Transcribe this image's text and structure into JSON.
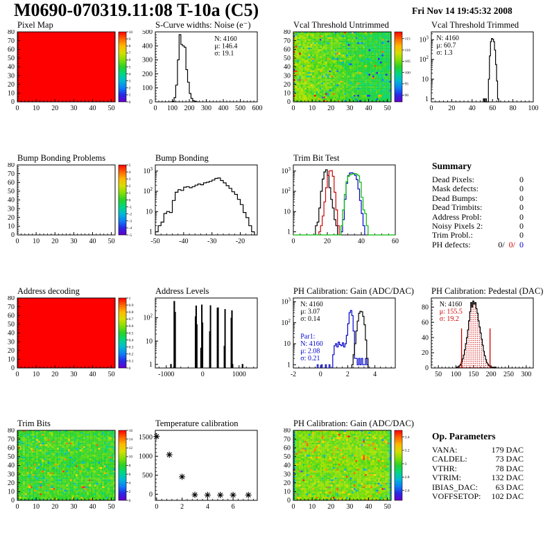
{
  "header": {
    "title": "M0690-070319.11:08 T-10a (C5)",
    "date": "Fri Nov 14 19:45:32 2008"
  },
  "colors": {
    "red": "#cc0000",
    "blue": "#0000cc",
    "green": "#00bb00",
    "black": "#000000"
  },
  "chart_data": [
    {
      "id": "pixel_map",
      "type": "heatmap",
      "title": "Pixel Map",
      "xlim": [
        0,
        52
      ],
      "ylim": [
        0,
        80
      ],
      "xticks": [
        0,
        10,
        20,
        30,
        40,
        50
      ],
      "yticks": [
        0,
        10,
        20,
        30,
        40,
        50,
        60,
        70,
        80
      ],
      "zlim": [
        0,
        10
      ],
      "fill": "solid",
      "value": 10,
      "colorbar": true,
      "cticks": [
        0,
        1,
        2,
        3,
        4,
        5,
        6,
        7,
        8,
        9,
        10
      ]
    },
    {
      "id": "scurve_noise",
      "type": "histogram",
      "title": "S-Curve widths: Noise (e⁻)",
      "xlim": [
        0,
        600
      ],
      "xticks": [
        0,
        100,
        200,
        300,
        400,
        500,
        600
      ],
      "yscale": "linear",
      "ylim": [
        0,
        500
      ],
      "yticks": [
        0,
        100,
        200,
        300,
        400,
        500
      ],
      "series": [
        {
          "color": "#000000",
          "start": 90,
          "width": 10,
          "counts": [
            1,
            5,
            30,
            120,
            300,
            480,
            410,
            400,
            390,
            230,
            140,
            60,
            25,
            8,
            3,
            1
          ]
        }
      ],
      "stats": [
        {
          "x": 0.58,
          "y": 0.05,
          "lines": [
            {
              "t": "N: 4160",
              "c": "#000000"
            },
            {
              "t": "μ: 146.4",
              "c": "#000000"
            },
            {
              "t": "σ: 19.1",
              "c": "#000000"
            }
          ]
        }
      ]
    },
    {
      "id": "vcal_untrimmed",
      "type": "heatmap",
      "title": "Vcal Threshold Untrimmed",
      "xlim": [
        0,
        52
      ],
      "ylim": [
        0,
        80
      ],
      "xticks": [
        0,
        10,
        20,
        30,
        40,
        50
      ],
      "yticks": [
        0,
        10,
        20,
        30,
        40,
        50,
        60,
        70,
        80
      ],
      "zlim": [
        87,
        118
      ],
      "fill": "noise",
      "mean": 103.5,
      "spread": 3.2,
      "gx": -5,
      "hi_rate": 0.025,
      "hi_boost": 9,
      "lo_rate": 0.05,
      "lo_boost": -8,
      "seed": 12345,
      "colorbar": true,
      "cticks": [
        90,
        95,
        100,
        105,
        110,
        115
      ]
    },
    {
      "id": "vcal_trimmed",
      "type": "histogram",
      "title": "Vcal Threshold Trimmed",
      "xlim": [
        0,
        100
      ],
      "xticks": [
        0,
        20,
        40,
        60,
        80,
        100
      ],
      "yscale": "log",
      "ylim": [
        0.7,
        2500
      ],
      "yticks": [
        {
          "v": 1,
          "b": "1"
        },
        {
          "v": 10,
          "b": "10"
        },
        {
          "v": 100,
          "b": "10",
          "e": "2"
        },
        {
          "v": 1000,
          "b": "10",
          "e": "3"
        }
      ],
      "series": [
        {
          "color": "#000000",
          "start": 51,
          "width": 1,
          "counts": [
            1,
            0,
            1,
            0,
            0,
            10,
            150,
            800,
            1150,
            1050,
            800,
            300,
            55,
            8,
            1
          ]
        }
      ],
      "stats": [
        {
          "x": 0.05,
          "y": 0.04,
          "lines": [
            {
              "t": "N: 4160",
              "c": "#000000"
            },
            {
              "t": "μ: 60.7",
              "c": "#000000"
            },
            {
              "t": "σ:  1.3",
              "c": "#000000"
            }
          ]
        }
      ]
    },
    {
      "id": "bump_problems",
      "type": "heatmap",
      "title": "Bump Bonding Problems",
      "xlim": [
        0,
        52
      ],
      "ylim": [
        0,
        80
      ],
      "xticks": [
        0,
        10,
        20,
        30,
        40,
        50
      ],
      "yticks": [
        0,
        10,
        20,
        30,
        40,
        50,
        60,
        70,
        80
      ],
      "zlim": [
        -5,
        5
      ],
      "fill": "none",
      "colorbar": true,
      "cticks": [
        -5,
        -4,
        -3,
        -2,
        -1,
        0,
        1,
        2,
        3,
        4,
        5
      ]
    },
    {
      "id": "bump_bonding",
      "type": "histogram",
      "title": "Bump Bonding",
      "xlim": [
        -50,
        -14
      ],
      "xticks": [
        -50,
        -40,
        -30,
        -20
      ],
      "yscale": "log",
      "ylim": [
        0.7,
        2000
      ],
      "yticks": [
        {
          "v": 1,
          "b": "1"
        },
        {
          "v": 10,
          "b": "10"
        },
        {
          "v": 100,
          "b": "10",
          "e": "2"
        },
        {
          "v": 1000,
          "b": "10",
          "e": "3"
        }
      ],
      "series": [
        {
          "color": "#000000",
          "start": -50,
          "width": 1,
          "counts": [
            1,
            2,
            3,
            8,
            10,
            9,
            35,
            90,
            120,
            110,
            160,
            170,
            150,
            170,
            200,
            230,
            210,
            260,
            280,
            310,
            360,
            430,
            450,
            340,
            260,
            190,
            140,
            95,
            70,
            40,
            22,
            9,
            5,
            2,
            1
          ]
        }
      ]
    },
    {
      "id": "trim_bit_test",
      "type": "histogram",
      "title": "Trim Bit Test",
      "xlim": [
        0,
        60
      ],
      "xticks": [
        0,
        20,
        40,
        60
      ],
      "yscale": "log",
      "ylim": [
        0.7,
        2000
      ],
      "yticks": [
        {
          "v": 1,
          "b": "1"
        },
        {
          "v": 10,
          "b": "10"
        },
        {
          "v": 100,
          "b": "10",
          "e": "2"
        },
        {
          "v": 1000,
          "b": "10",
          "e": "3"
        }
      ],
      "series": [
        {
          "color": "#000000",
          "start": 13,
          "width": 1,
          "counts": [
            2,
            3,
            15,
            100,
            400,
            900,
            1150,
            600,
            150,
            40,
            15,
            4,
            2
          ]
        },
        {
          "color": "#cc0000",
          "start": 15,
          "width": 1,
          "counts": [
            1,
            2,
            6,
            30,
            150,
            600,
            1000,
            1050,
            550,
            90,
            12,
            2
          ]
        },
        {
          "color": "#0000cc",
          "start": 28,
          "width": 1,
          "counts": [
            1,
            4,
            40,
            250,
            600,
            800,
            820,
            750,
            620,
            380,
            130,
            35,
            8,
            2
          ]
        },
        {
          "color": "#00bb00",
          "start": 28,
          "width": 1,
          "full_base": true,
          "counts": [
            2,
            12,
            70,
            300,
            550,
            660,
            700,
            730,
            740,
            700,
            580,
            280,
            50,
            12,
            8,
            2
          ]
        }
      ]
    },
    {
      "id": "address_decoding",
      "type": "heatmap",
      "title": "Address decoding",
      "xlim": [
        0,
        52
      ],
      "ylim": [
        0,
        80
      ],
      "xticks": [
        0,
        10,
        20,
        30,
        40,
        50
      ],
      "yticks": [
        0,
        10,
        20,
        30,
        40,
        50,
        60,
        70,
        80
      ],
      "zlim": [
        0,
        1
      ],
      "fill": "solid",
      "value": 1,
      "colorbar": true,
      "cticks": [
        0,
        0.1,
        0.2,
        0.3,
        0.4,
        0.5,
        0.6,
        0.7,
        0.8,
        0.9,
        1
      ]
    },
    {
      "id": "address_levels",
      "type": "histogram",
      "title": "Address Levels",
      "xlim": [
        -1300,
        1500
      ],
      "xticks": [
        -1000,
        0,
        1000
      ],
      "yscale": "log",
      "ylim": [
        0.7,
        700
      ],
      "yticks": [
        {
          "v": 1,
          "b": "1"
        },
        {
          "v": 10,
          "b": "10"
        },
        {
          "v": 100,
          "b": "10",
          "e": "2"
        }
      ],
      "bars": [
        [
          -880,
          20,
          1
        ],
        [
          -790,
          22,
          500
        ],
        [
          -768,
          22,
          170
        ],
        [
          -205,
          18,
          110
        ],
        [
          -187,
          18,
          320
        ],
        [
          -169,
          18,
          50
        ],
        [
          -55,
          18,
          5
        ],
        [
          -32,
          18,
          350
        ],
        [
          -14,
          18,
          60
        ],
        [
          188,
          18,
          25
        ],
        [
          206,
          18,
          330
        ],
        [
          398,
          18,
          260
        ],
        [
          416,
          18,
          265
        ],
        [
          588,
          18,
          6
        ],
        [
          606,
          18,
          225
        ],
        [
          778,
          18,
          95
        ],
        [
          796,
          18,
          200
        ],
        [
          814,
          18,
          1
        ],
        [
          1085,
          20,
          1
        ]
      ],
      "bars_color": "#000000"
    },
    {
      "id": "ph_gain_hist",
      "type": "histogram",
      "title": "PH Calibration: Gain (ADC/DAC)",
      "xlim": [
        -2,
        5.5
      ],
      "xticks": [
        -2,
        0,
        2,
        4
      ],
      "yscale": "log",
      "ylim": [
        0.7,
        1500
      ],
      "yticks": [
        {
          "v": 1,
          "b": "1"
        },
        {
          "v": 10,
          "b": "10"
        },
        {
          "v": 100,
          "b": "10",
          "e": "2"
        },
        {
          "v": 1000,
          "b": "10",
          "e": "3"
        }
      ],
      "bars": [
        [
          -0.25,
          0.08,
          1
        ],
        [
          0.05,
          0.08,
          1
        ],
        [
          0.35,
          0.08,
          1
        ],
        [
          0.62,
          0.08,
          1
        ]
      ],
      "bars_color": "#0000cc",
      "series": [
        {
          "color": "#0000cc",
          "start": 0.9,
          "width": 0.1,
          "counts": [
            3,
            8,
            10,
            7,
            12,
            9,
            8,
            11,
            7,
            10,
            25,
            90,
            300,
            380,
            220,
            40,
            2,
            2,
            1,
            2,
            1,
            2,
            1,
            1,
            2,
            1
          ]
        },
        {
          "color": "#000000",
          "start": 2.3,
          "width": 0.1,
          "counts": [
            1,
            3,
            10,
            40,
            120,
            280,
            350,
            330,
            200,
            80,
            15,
            2
          ]
        }
      ],
      "stats": [
        {
          "x": 0.07,
          "y": 0.04,
          "lines": [
            {
              "t": "N: 4160",
              "c": "#000000"
            },
            {
              "t": "μ: 3.07",
              "c": "#000000"
            },
            {
              "t": "σ: 0.14",
              "c": "#000000"
            }
          ]
        },
        {
          "x": 0.07,
          "y": 0.5,
          "lines": [
            {
              "t": "Par1:",
              "c": "#0000cc"
            },
            {
              "t": "N: 4160",
              "c": "#0000cc"
            },
            {
              "t": "μ: 2.08",
              "c": "#0000cc"
            },
            {
              "t": "σ: 0.21",
              "c": "#0000cc"
            }
          ]
        }
      ]
    },
    {
      "id": "ph_pedestal",
      "type": "histogram",
      "title": "PH Calibration: Pedestal (DAC)",
      "xlim": [
        30,
        320
      ],
      "xticks": [
        50,
        100,
        150,
        200,
        250,
        300
      ],
      "yscale": "linear",
      "ylim": [
        0,
        92
      ],
      "yticks": [
        0,
        20,
        40,
        60,
        80
      ],
      "series": [
        {
          "color": "#000000",
          "fill": "dots",
          "start": 100,
          "width": 3,
          "counts": [
            1,
            1,
            2,
            3,
            5,
            8,
            12,
            17,
            24,
            32,
            40,
            50,
            62,
            74,
            86,
            80,
            88,
            84,
            86,
            78,
            72,
            62,
            54,
            46,
            38,
            30,
            22,
            16,
            11,
            7,
            5,
            3,
            2,
            1,
            1,
            1,
            0,
            1
          ]
        }
      ],
      "vlines": [
        {
          "x": 116,
          "y": 52
        },
        {
          "x": 197,
          "y": 52
        }
      ],
      "stats": [
        {
          "x": 0.08,
          "y": 0.04,
          "lines": [
            {
              "t": "N: 4160",
              "c": "#000000"
            },
            {
              "t": "μ: 155.5",
              "c": "#cc0000"
            },
            {
              "t": "σ: 19.2",
              "c": "#cc0000"
            }
          ]
        }
      ]
    },
    {
      "id": "trim_bits_map",
      "type": "heatmap",
      "title": "Trim Bits",
      "xlim": [
        0,
        52
      ],
      "ylim": [
        0,
        80
      ],
      "xticks": [
        0,
        10,
        20,
        30,
        40,
        50
      ],
      "yticks": [
        0,
        10,
        20,
        30,
        40,
        50,
        60,
        70,
        80
      ],
      "zlim": [
        0,
        16
      ],
      "fill": "noise",
      "mean": 8.4,
      "spread": 1.5,
      "gx": 0,
      "hi_rate": 0.035,
      "hi_boost": 4.5,
      "lo_rate": 0.06,
      "lo_boost": -2.8,
      "seed": 777,
      "colorbar": true,
      "cticks": [
        0,
        2,
        4,
        6,
        8,
        10,
        12,
        14,
        16
      ]
    },
    {
      "id": "temp_calibration",
      "type": "scatter",
      "title": "Temperature calibration",
      "xlim": [
        -0.1,
        7.9
      ],
      "xticks": [
        0,
        2,
        4,
        6
      ],
      "yscale": "linear",
      "ylim": [
        -160,
        1680
      ],
      "yticks": [
        0,
        500,
        1000,
        1500
      ],
      "marker": "asterisk",
      "points": [
        [
          0,
          1520
        ],
        [
          1,
          1040
        ],
        [
          2,
          460
        ],
        [
          3,
          -15
        ],
        [
          4,
          -20
        ],
        [
          5,
          -20
        ],
        [
          6,
          -20
        ],
        [
          7.2,
          -20
        ]
      ]
    },
    {
      "id": "ph_gain_map",
      "type": "heatmap",
      "title": "PH Calibration: Gain (ADC/DAC)",
      "xlim": [
        0,
        52
      ],
      "ylim": [
        0,
        80
      ],
      "xticks": [
        0,
        10,
        20,
        30,
        40,
        50
      ],
      "yticks": [
        0,
        10,
        20,
        30,
        40,
        50,
        60,
        70,
        80
      ],
      "zlim": [
        2.45,
        3.5
      ],
      "fill": "noise",
      "mean": 3.07,
      "spread": 0.09,
      "gx": 0,
      "hi_rate": 0.07,
      "hi_boost": 0.24,
      "lo_rate": 0.02,
      "lo_boost": -0.28,
      "edge": {
        "n": 1,
        "delta": -0.3
      },
      "seed": 4242,
      "colorbar": true,
      "cticks": [
        2.6,
        2.8,
        3,
        3.2,
        3.4
      ]
    }
  ],
  "summary": {
    "title": "Summary",
    "rows": [
      {
        "label": "Dead Pixels:",
        "value": "0"
      },
      {
        "label": "Mask defects:",
        "value": "0"
      },
      {
        "label": "Dead Bumps:",
        "value": "0"
      },
      {
        "label": "Dead Trimbits:",
        "value": "0"
      },
      {
        "label": "Address Probl:",
        "value": "0"
      },
      {
        "label": "Noisy Pixels 2:",
        "value": "0"
      },
      {
        "label": "Trim Probl.:",
        "value": "0"
      }
    ],
    "ph_defects": {
      "label": "PH defects:",
      "values": [
        {
          "text": "0/",
          "color": "#000000"
        },
        {
          "text": "0/",
          "color": "#cc0000"
        },
        {
          "text": "0",
          "color": "#0000cc"
        }
      ]
    }
  },
  "op_parameters": {
    "title": "Op. Parameters",
    "rows": [
      {
        "label": "VANA:",
        "value": "179 DAC"
      },
      {
        "label": "CALDEL:",
        "value": "73 DAC"
      },
      {
        "label": "VTHR:",
        "value": "78 DAC"
      },
      {
        "label": "VTRIM:",
        "value": "132 DAC"
      },
      {
        "label": "IBIAS_DAC:",
        "value": "63 DAC"
      },
      {
        "label": "VOFFSETOP:",
        "value": "102 DAC"
      }
    ]
  }
}
